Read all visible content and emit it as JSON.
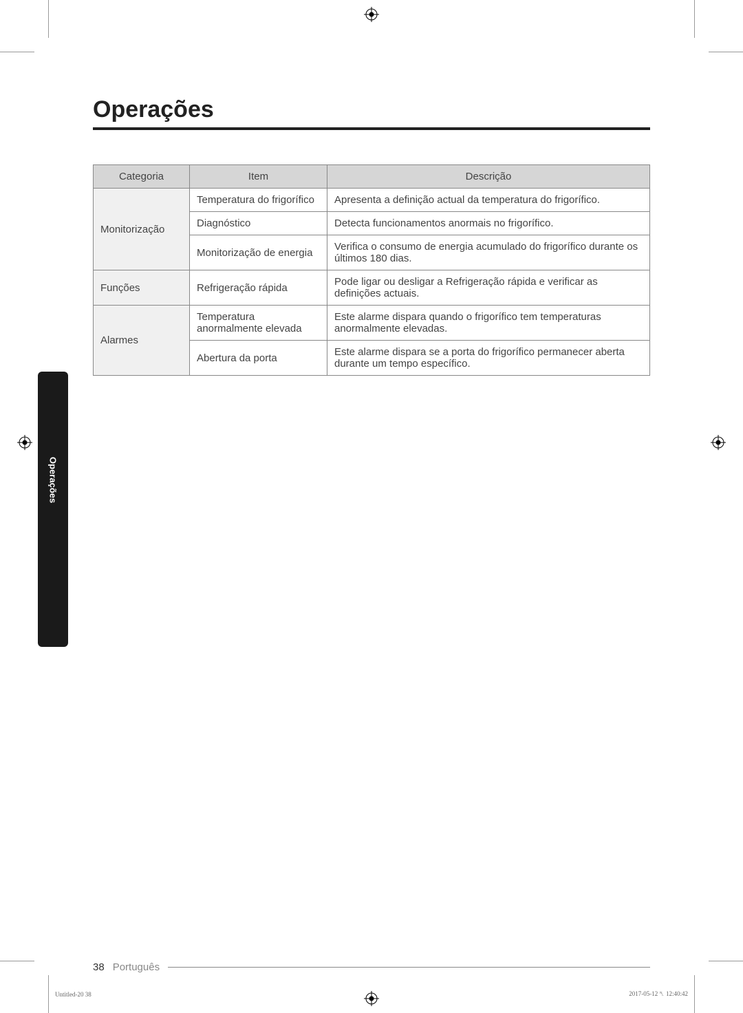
{
  "section_title": "Operações",
  "side_tab_label": "Operações",
  "table": {
    "headers": [
      "Categoria",
      "Item",
      "Descrição"
    ],
    "groups": [
      {
        "category": "Monitorização",
        "rows": [
          {
            "item": "Temperatura do frigorífico",
            "desc": "Apresenta a definição actual da temperatura do frigorífico."
          },
          {
            "item": "Diagnóstico",
            "desc": "Detecta funcionamentos anormais no frigorífico."
          },
          {
            "item": "Monitorização de energia",
            "desc": "Verifica o consumo de energia acumulado do frigorífico durante os últimos 180 dias."
          }
        ]
      },
      {
        "category": "Funções",
        "rows": [
          {
            "item": "Refrigeração rápida",
            "desc": "Pode ligar ou desligar a Refrigeração rápida e verificar as definições actuais."
          }
        ]
      },
      {
        "category": "Alarmes",
        "rows": [
          {
            "item": "Temperatura anormalmente elevada",
            "desc": "Este alarme dispara quando o frigorífico tem temperaturas anormalmente elevadas."
          },
          {
            "item": "Abertura da porta",
            "desc": "Este alarme dispara se a porta do frigorífico permanecer aberta durante um tempo específico."
          }
        ]
      }
    ]
  },
  "footer": {
    "page_number": "38",
    "language": "Português"
  },
  "print_meta": {
    "left": "Untitled-20   38",
    "right": "2017-05-12   ␤ 12:40:42"
  },
  "colors": {
    "header_bg": "#d6d6d6",
    "category_bg": "#f0f0f0",
    "border": "#888888",
    "title_underline": "#222222",
    "side_tab_bg": "#1a1a1a"
  }
}
